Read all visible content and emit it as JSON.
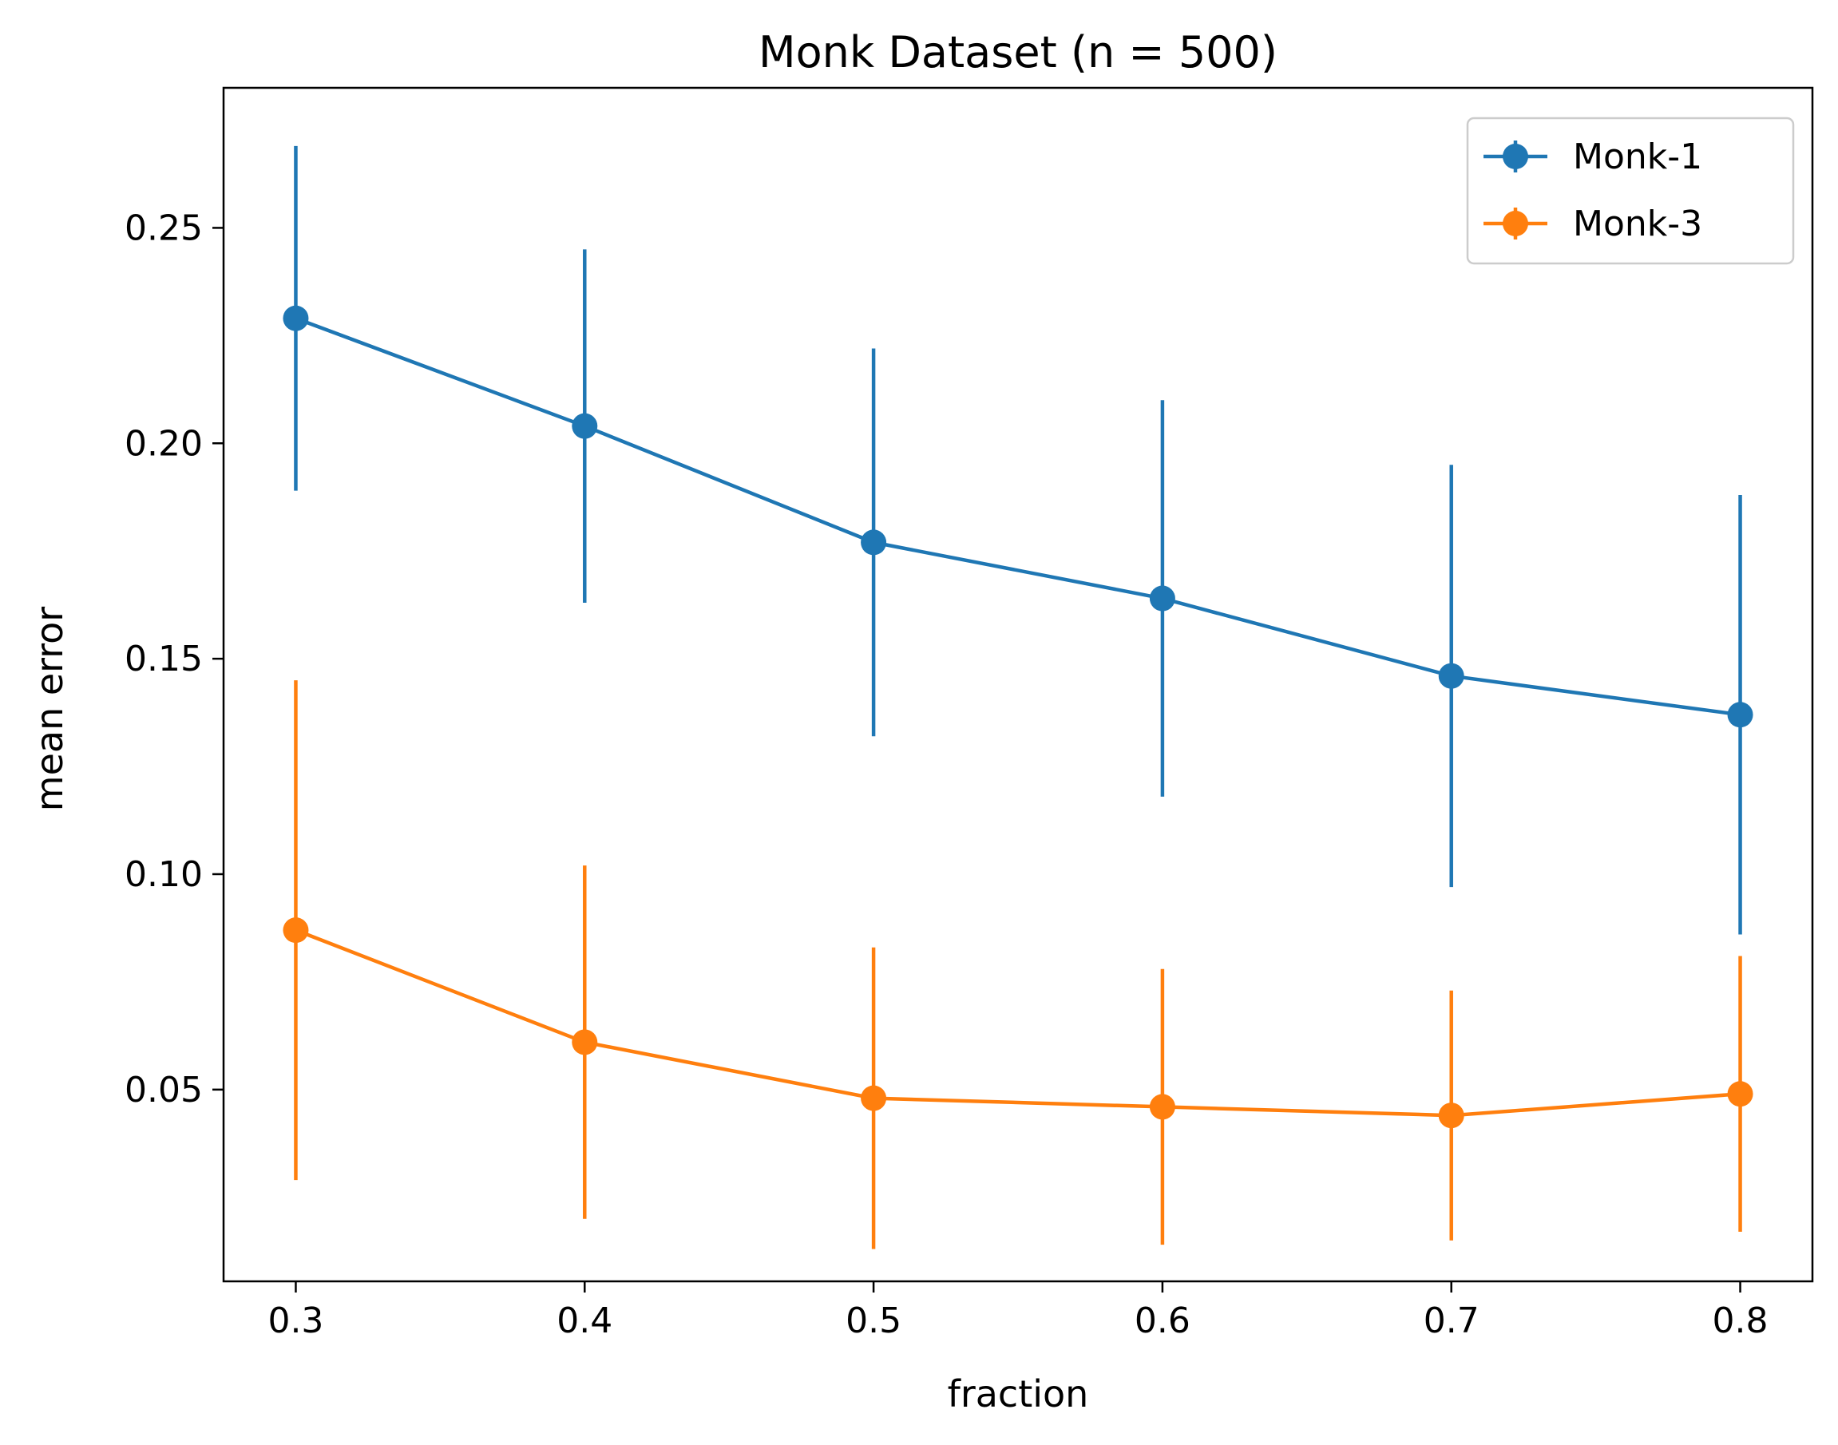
{
  "chart_data": {
    "type": "line",
    "title": "Monk Dataset (n = 500)",
    "xlabel": "fraction",
    "ylabel": "mean error",
    "x": [
      0.3,
      0.4,
      0.5,
      0.6,
      0.7,
      0.8
    ],
    "xticks": [
      0.3,
      0.4,
      0.5,
      0.6,
      0.7,
      0.8
    ],
    "xtick_labels": [
      "0.3",
      "0.4",
      "0.5",
      "0.6",
      "0.7",
      "0.8"
    ],
    "yticks": [
      0.05,
      0.1,
      0.15,
      0.2,
      0.25
    ],
    "ytick_labels": [
      "0.05",
      "0.10",
      "0.15",
      "0.20",
      "0.25"
    ],
    "xlim": [
      0.275,
      0.825
    ],
    "ylim": [
      0.0055,
      0.2825
    ],
    "grid": false,
    "legend_position": "top-right",
    "series": [
      {
        "name": "Monk-1",
        "color": "#1f77b4",
        "values": [
          0.229,
          0.204,
          0.177,
          0.164,
          0.146,
          0.137
        ],
        "error_low": [
          0.189,
          0.163,
          0.132,
          0.118,
          0.097,
          0.086
        ],
        "error_high": [
          0.269,
          0.245,
          0.222,
          0.21,
          0.195,
          0.188
        ]
      },
      {
        "name": "Monk-3",
        "color": "#ff7f0e",
        "values": [
          0.087,
          0.061,
          0.048,
          0.046,
          0.044,
          0.049
        ],
        "error_low": [
          0.029,
          0.02,
          0.013,
          0.014,
          0.015,
          0.017
        ],
        "error_high": [
          0.145,
          0.102,
          0.083,
          0.078,
          0.073,
          0.081
        ]
      }
    ]
  }
}
